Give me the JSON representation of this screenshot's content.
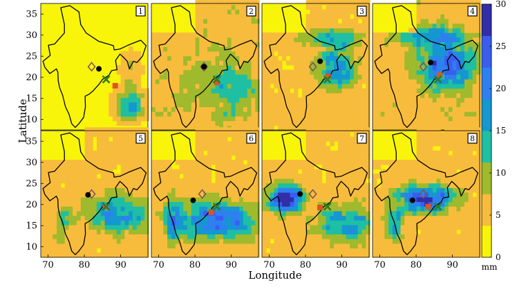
{
  "chart_data": {
    "type": "heatmap",
    "xlabel": "Longitude",
    "ylabel": "Latitude",
    "x_ticks": [
      70,
      80,
      90
    ],
    "y_ticks": [
      10,
      15,
      20,
      25,
      30,
      35
    ],
    "xlim": [
      68,
      97.5
    ],
    "ylim": [
      7.5,
      37.5
    ],
    "colorbar": {
      "unit": "mm",
      "ticks": [
        0,
        5,
        10,
        15,
        20,
        25,
        30
      ],
      "range": [
        0,
        30
      ],
      "colors": [
        "#f8f40a",
        "#f8bc3c",
        "#9fba2c",
        "#1fbfa3",
        "#1597d0",
        "#2e80f0",
        "#3a5df0",
        "#312ea8"
      ]
    },
    "panel_labels": [
      "1",
      "2",
      "3",
      "4",
      "5",
      "6",
      "7",
      "8"
    ],
    "markers": {
      "legend": [
        {
          "marker": "black-circle",
          "color": "#000000"
        },
        {
          "marker": "diamond",
          "color": "#7a4f63"
        },
        {
          "marker": "orange-square",
          "color": "#e0541c"
        },
        {
          "marker": "green-x",
          "color": "#2e7d22"
        }
      ],
      "panels": [
        {
          "panel": 1,
          "circle": [
            84,
            22
          ],
          "diamond": [
            82,
            22.5
          ],
          "square": [
            88.5,
            18
          ],
          "x": [
            86,
            19.5
          ]
        },
        {
          "panel": 2,
          "circle": [
            82.5,
            22.5
          ],
          "diamond": [
            82.5,
            22.5
          ],
          "square": [
            86,
            18.8
          ],
          "x": [
            86,
            19.5
          ]
        },
        {
          "panel": 3,
          "circle": [
            84,
            23.8
          ],
          "diamond": [
            82,
            22.5
          ],
          "square": [
            86.2,
            20.2
          ],
          "x": [
            86,
            19.5
          ]
        },
        {
          "panel": 4,
          "circle": [
            84,
            23.5
          ],
          "diamond": [
            82,
            22.5
          ],
          "square": [
            86.5,
            20.5
          ],
          "x": [
            86,
            19.5
          ]
        },
        {
          "panel": 5,
          "circle": [
            81,
            22.3
          ],
          "diamond": [
            82,
            22.5
          ],
          "square": [
            85.8,
            19.5
          ],
          "x": [
            86,
            19.5
          ]
        },
        {
          "panel": 6,
          "circle": [
            79.5,
            21
          ],
          "diamond": [
            82,
            22.5
          ],
          "square": [
            84.5,
            18.2
          ],
          "x": [
            86,
            19.5
          ]
        },
        {
          "panel": 7,
          "circle": [
            78.5,
            22.5
          ],
          "diamond": [
            82,
            22.5
          ],
          "square": [
            84,
            19.3
          ],
          "x": [
            86,
            19.5
          ]
        },
        {
          "panel": 8,
          "circle": [
            79,
            21
          ],
          "diamond": [
            82,
            22.5
          ],
          "square": [
            83.3,
            19.5
          ],
          "x": [
            86,
            19.5
          ]
        }
      ]
    }
  }
}
